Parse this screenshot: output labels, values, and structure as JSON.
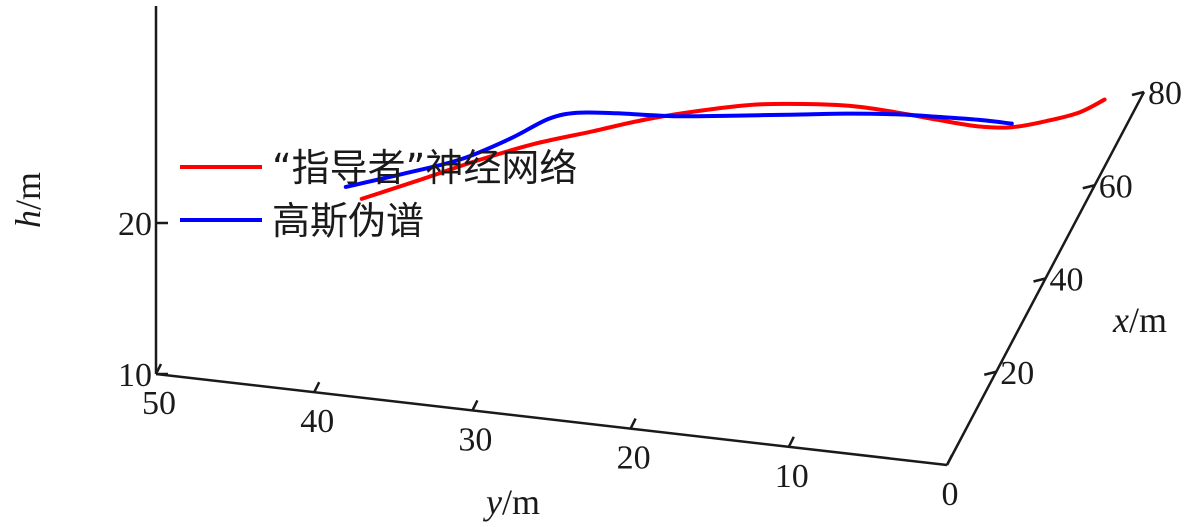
{
  "chart_data": {
    "type": "line",
    "projection": "3d",
    "xlabel": {
      "var": "x",
      "unit": "m"
    },
    "ylabel": {
      "var": "y",
      "unit": "m"
    },
    "zlabel": {
      "var": "h",
      "unit": "m"
    },
    "x_ticks": [
      "20",
      "40",
      "60",
      "80"
    ],
    "y_ticks": [
      "50",
      "40",
      "30",
      "20",
      "10",
      "0"
    ],
    "z_ticks": [
      "10",
      "20"
    ],
    "xlim": [
      0,
      80
    ],
    "ylim": [
      0,
      50
    ],
    "zlim": [
      10,
      30
    ],
    "legend_position": "upper-left",
    "series": [
      {
        "name": "“指导者”神经网络",
        "color": "#ff0000",
        "points": [
          [
            0,
            37,
            23.16
          ],
          [
            4,
            34,
            23.53
          ],
          [
            8,
            31,
            23.93
          ],
          [
            12,
            28,
            24.17
          ],
          [
            16,
            25,
            24.12
          ],
          [
            20,
            22,
            24.09
          ],
          [
            24,
            19,
            23.81
          ],
          [
            28,
            16.5,
            23.23
          ],
          [
            32,
            14,
            22.34
          ],
          [
            36,
            11.5,
            21.26
          ],
          [
            40,
            9.5,
            19.87
          ],
          [
            44,
            7.5,
            18.38
          ],
          [
            48,
            5.5,
            16.94
          ],
          [
            52,
            4,
            15.83
          ],
          [
            56,
            2.5,
            15.17
          ],
          [
            60,
            1,
            14.69
          ],
          [
            64,
            0,
            14.44
          ]
        ]
      },
      {
        "name": "高斯伪谱",
        "color": "#0000ff",
        "points": [
          [
            0,
            38,
            23.84
          ],
          [
            4,
            35,
            23.83
          ],
          [
            8,
            32,
            23.91
          ],
          [
            12,
            29.5,
            24.34
          ],
          [
            15,
            27.5,
            24.98
          ],
          [
            17,
            26,
            24.94
          ],
          [
            20,
            24,
            24.22
          ],
          [
            24,
            21,
            23.16
          ],
          [
            28,
            18,
            22.32
          ],
          [
            32,
            15,
            21.51
          ],
          [
            36,
            12,
            20.71
          ],
          [
            40,
            9.5,
            19.73
          ],
          [
            44,
            7.5,
            18.57
          ],
          [
            48,
            5.5,
            17.38
          ],
          [
            52,
            4,
            16.07
          ]
        ]
      }
    ]
  }
}
